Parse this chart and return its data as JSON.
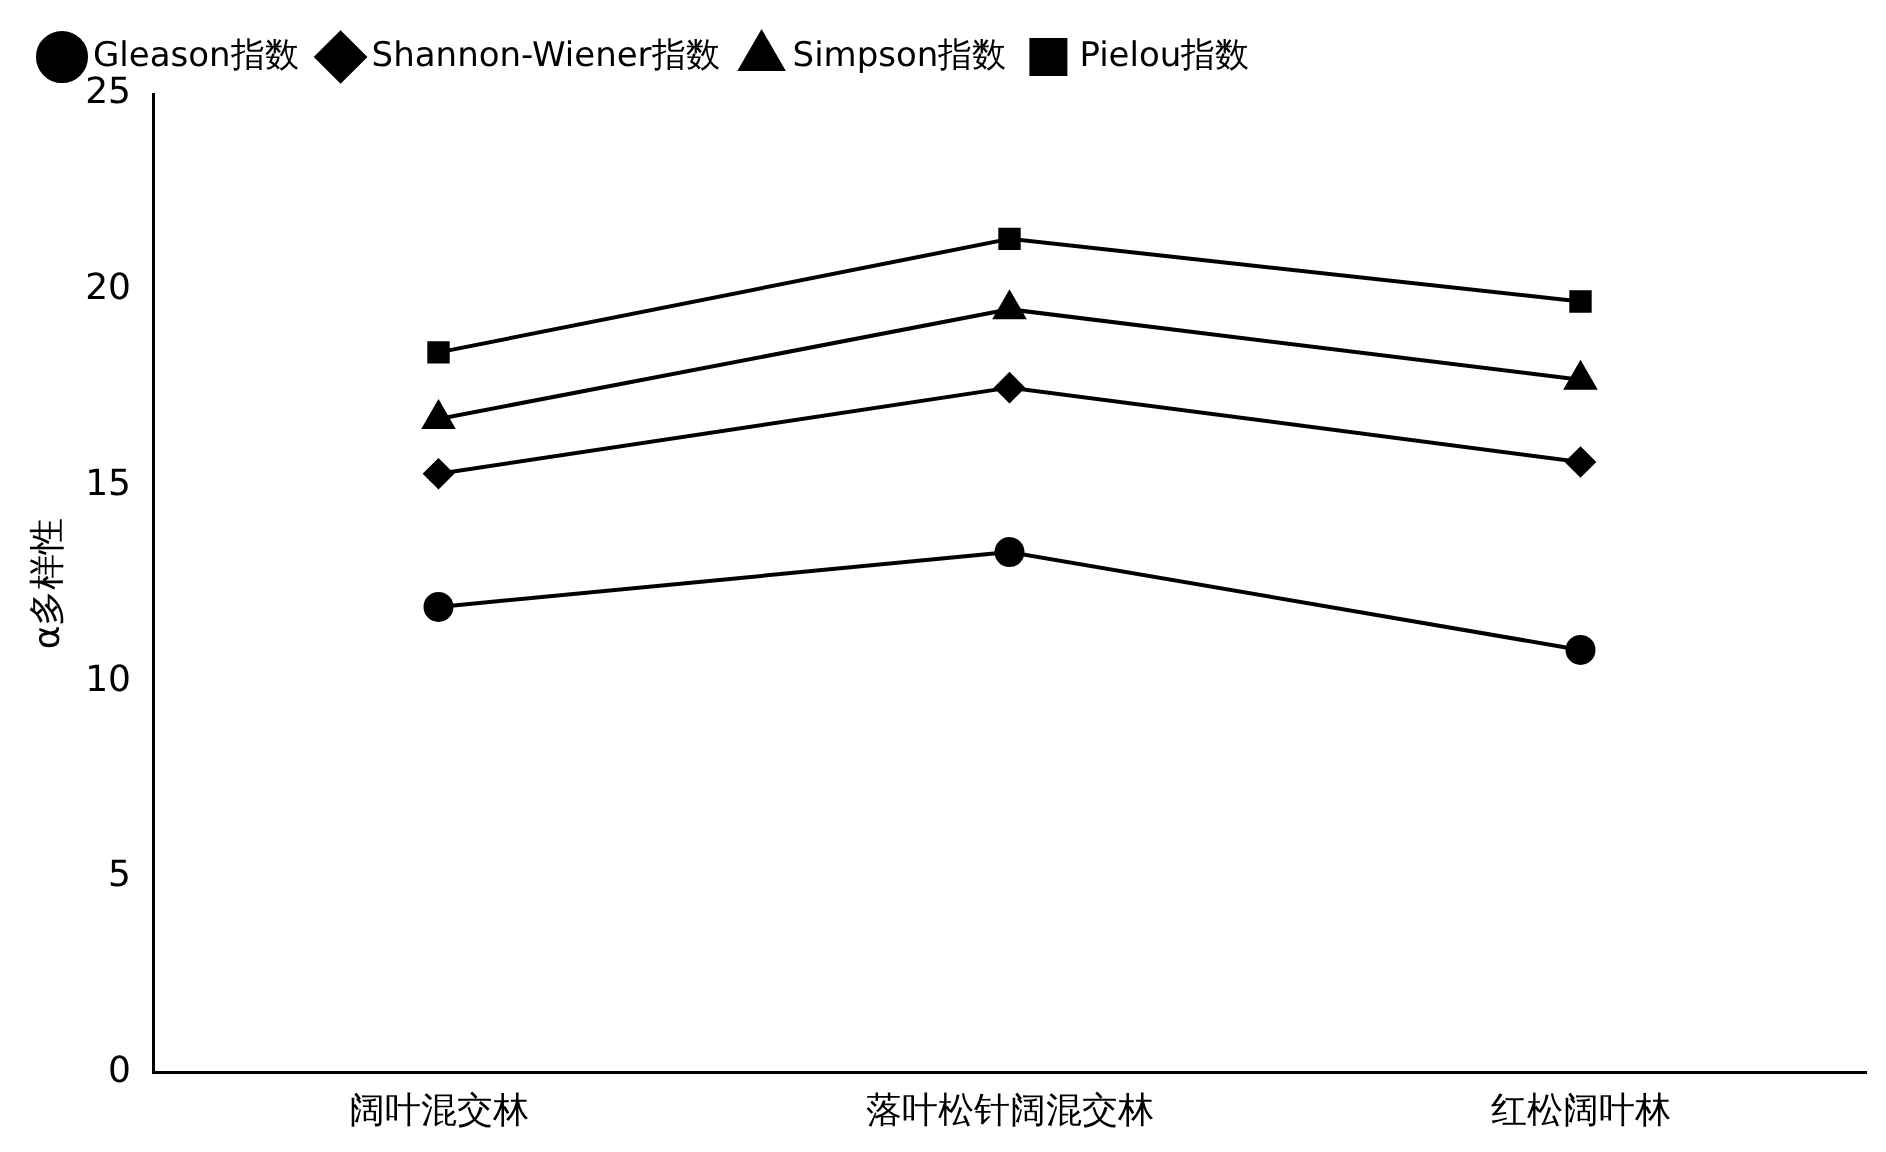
{
  "chart_data": {
    "type": "line",
    "ylabel": "α多样性",
    "categories": [
      "阔叶混交林",
      "落叶松针阔混交林",
      "红松阔叶林"
    ],
    "ylim": [
      0,
      25
    ],
    "yticks": [
      0,
      5,
      10,
      15,
      20,
      25
    ],
    "grid": false,
    "legend": "top left",
    "line_style": "solid",
    "series": [
      {
        "name": "Gleason指数",
        "color": "#000000",
        "marker": "circle",
        "values": [
          11.9,
          13.3,
          10.8
        ]
      },
      {
        "name": "Shannon-Wiener指数",
        "color": "#000000",
        "marker": "diamond",
        "values": [
          15.3,
          17.5,
          15.6
        ]
      },
      {
        "name": "Simpson指数",
        "color": "#000000",
        "marker": "triangle",
        "values": [
          16.7,
          19.5,
          17.7
        ]
      },
      {
        "name": "Pielou指数",
        "color": "#000000",
        "marker": "square",
        "values": [
          18.4,
          21.3,
          19.7
        ]
      }
    ]
  }
}
